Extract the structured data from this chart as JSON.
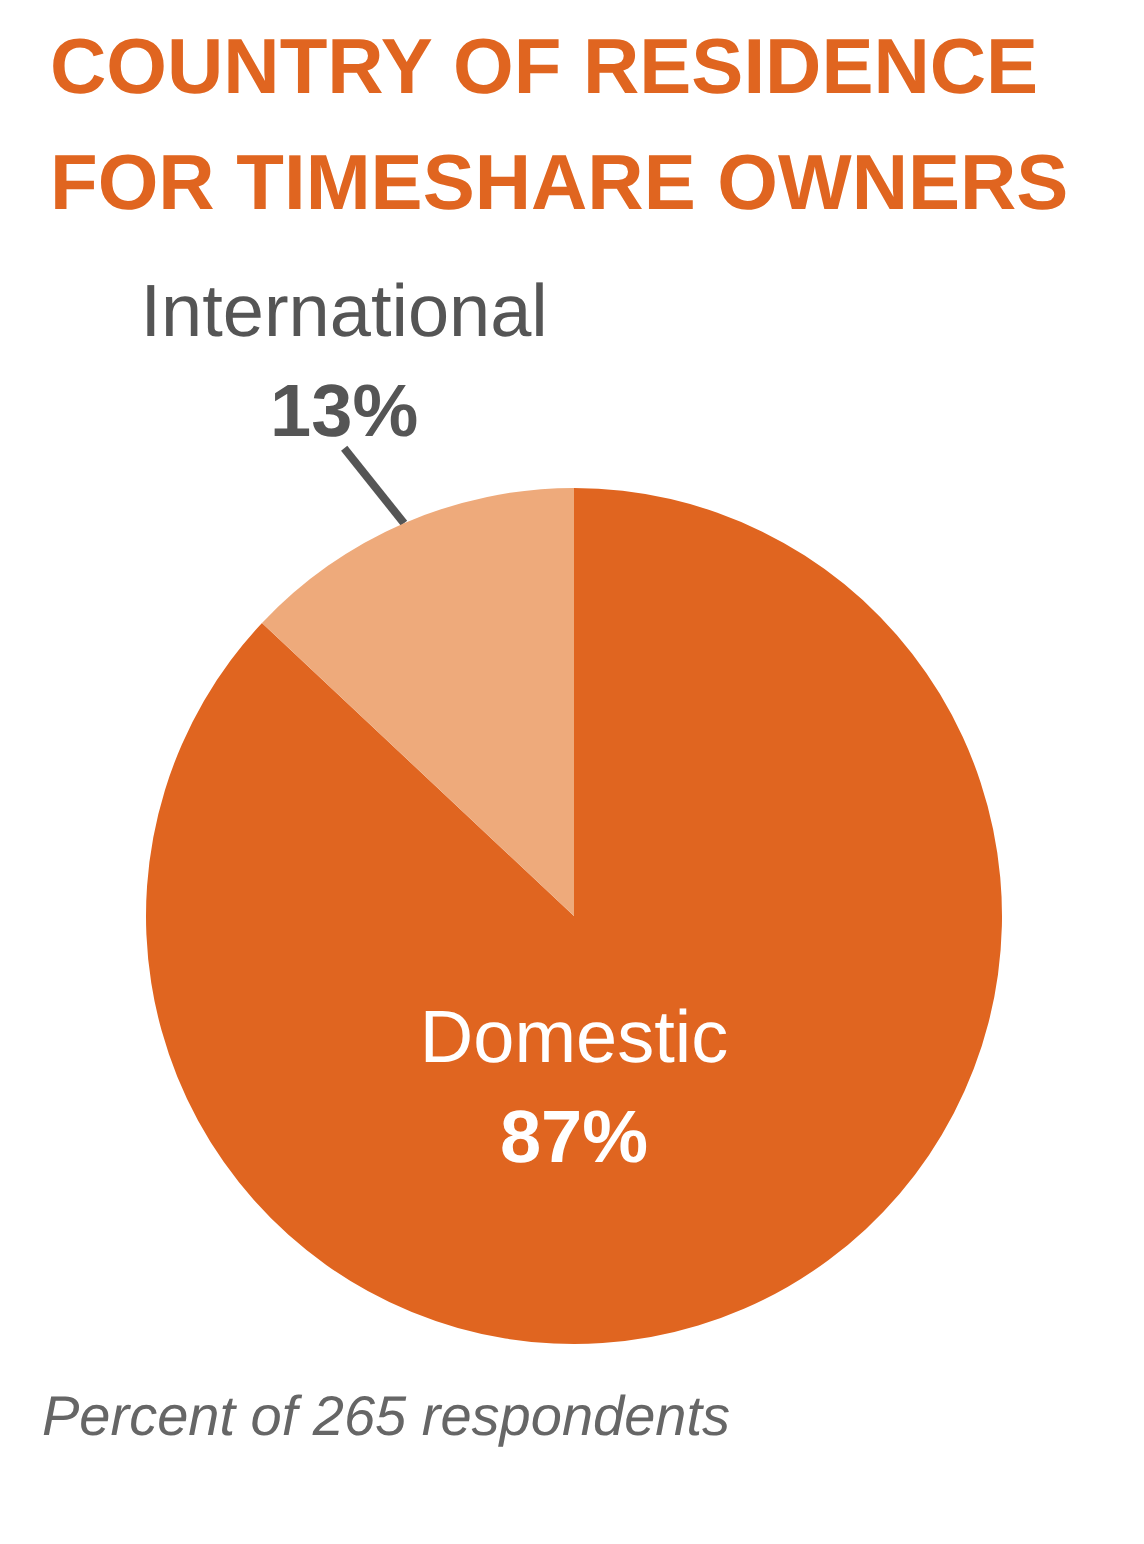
{
  "chart_data": {
    "type": "pie",
    "title": "COUNTRY OF RESIDENCE FOR TIMESHARE OWNERS",
    "categories": [
      "Domestic",
      "International"
    ],
    "values": [
      87,
      13
    ],
    "colors": [
      "#e06520",
      "#eeaa7b"
    ],
    "value_labels": [
      "87%",
      "13%"
    ],
    "annotations": [
      "Percent of 265 respondents"
    ]
  }
}
